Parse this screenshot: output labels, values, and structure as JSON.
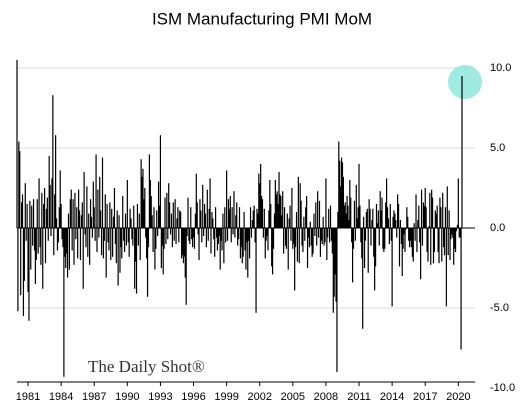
{
  "chart_data": {
    "type": "bar",
    "title": "ISM Manufacturing PMI MoM",
    "watermark": "The Daily Shot®",
    "color": "#000000",
    "grid": true,
    "ylim": [
      -10,
      10.7
    ],
    "yticks": [
      {
        "value": 10,
        "label": "10.0"
      },
      {
        "value": 5,
        "label": "5.0"
      },
      {
        "value": 0,
        "label": "0.0"
      },
      {
        "value": -5,
        "label": "-5.0"
      },
      {
        "value": -10,
        "label": "-10.0"
      }
    ],
    "categories": [
      null,
      null,
      null,
      null,
      null,
      null,
      null,
      null,
      null,
      null,
      null,
      null,
      "1981",
      null,
      null,
      null,
      null,
      null,
      null,
      null,
      null,
      null,
      null,
      null,
      null,
      null,
      null,
      null,
      null,
      null,
      null,
      null,
      null,
      null,
      null,
      null,
      null,
      null,
      null,
      null,
      null,
      null,
      null,
      null,
      null,
      null,
      null,
      null,
      "1984",
      null,
      null,
      null,
      null,
      null,
      null,
      null,
      null,
      null,
      null,
      null,
      null,
      null,
      null,
      null,
      null,
      null,
      null,
      null,
      null,
      null,
      null,
      null,
      null,
      null,
      null,
      null,
      null,
      null,
      null,
      null,
      null,
      null,
      null,
      null,
      "1987",
      null,
      null,
      null,
      null,
      null,
      null,
      null,
      null,
      null,
      null,
      null,
      null,
      null,
      null,
      null,
      null,
      null,
      null,
      null,
      null,
      null,
      null,
      null,
      null,
      null,
      null,
      null,
      null,
      null,
      null,
      null,
      null,
      null,
      null,
      null,
      "1990",
      null,
      null,
      null,
      null,
      null,
      null,
      null,
      null,
      null,
      null,
      null,
      null,
      null,
      null,
      null,
      null,
      null,
      null,
      null,
      null,
      null,
      null,
      null,
      null,
      null,
      null,
      null,
      null,
      null,
      null,
      null,
      null,
      null,
      null,
      null,
      "1993",
      null,
      null,
      null,
      null,
      null,
      null,
      null,
      null,
      null,
      null,
      null,
      null,
      null,
      null,
      null,
      null,
      null,
      null,
      null,
      null,
      null,
      null,
      null,
      null,
      null,
      null,
      null,
      null,
      null,
      null,
      null,
      null,
      null,
      null,
      null,
      "1996",
      null,
      null,
      null,
      null,
      null,
      null,
      null,
      null,
      null,
      null,
      null,
      null,
      null,
      null,
      null,
      null,
      null,
      null,
      null,
      null,
      null,
      null,
      null,
      null,
      null,
      null,
      null,
      null,
      null,
      null,
      null,
      null,
      null,
      null,
      null,
      "1999",
      null,
      null,
      null,
      null,
      null,
      null,
      null,
      null,
      null,
      null,
      null,
      null,
      null,
      null,
      null,
      null,
      null,
      null,
      null,
      null,
      null,
      null,
      null,
      null,
      null,
      null,
      null,
      null,
      null,
      null,
      null,
      null,
      null,
      null,
      null,
      "2002",
      null,
      null,
      null,
      null,
      null,
      null,
      null,
      null,
      null,
      null,
      null,
      null,
      null,
      null,
      null,
      null,
      null,
      null,
      null,
      null,
      null,
      null,
      null,
      null,
      null,
      null,
      null,
      null,
      null,
      null,
      null,
      null,
      null,
      null,
      null,
      "2005",
      null,
      null,
      null,
      null,
      null,
      null,
      null,
      null,
      null,
      null,
      null,
      null,
      null,
      null,
      null,
      null,
      null,
      null,
      null,
      null,
      null,
      null,
      null,
      null,
      null,
      null,
      null,
      null,
      null,
      null,
      null,
      null,
      null,
      null,
      null,
      "2008",
      null,
      null,
      null,
      null,
      null,
      null,
      null,
      null,
      null,
      null,
      null,
      null,
      null,
      null,
      null,
      null,
      null,
      null,
      null,
      null,
      null,
      null,
      null,
      null,
      null,
      null,
      null,
      null,
      null,
      null,
      null,
      null,
      null,
      null,
      null,
      "2011",
      null,
      null,
      null,
      null,
      null,
      null,
      null,
      null,
      null,
      null,
      null,
      null,
      null,
      null,
      null,
      null,
      null,
      null,
      null,
      null,
      null,
      null,
      null,
      null,
      null,
      null,
      null,
      null,
      null,
      null,
      null,
      null,
      null,
      null,
      null,
      "2014",
      null,
      null,
      null,
      null,
      null,
      null,
      null,
      null,
      null,
      null,
      null,
      null,
      null,
      null,
      null,
      null,
      null,
      null,
      null,
      null,
      null,
      null,
      null,
      null,
      null,
      null,
      null,
      null,
      null,
      null,
      null,
      null,
      null,
      null,
      null,
      "2017",
      null,
      null,
      null,
      null,
      null,
      null,
      null,
      null,
      null,
      null,
      null,
      null,
      null,
      null,
      null,
      null,
      null,
      null,
      null,
      null,
      null,
      null,
      null,
      null,
      null,
      null,
      null,
      null,
      null,
      null,
      null,
      null,
      null,
      null,
      null,
      "2020",
      null,
      null,
      null,
      null
    ],
    "values": [
      10.5,
      -5.2,
      5.4,
      4.8,
      -4.2,
      1.6,
      2.1,
      -5.5,
      -3.3,
      2.8,
      -0.8,
      1.5,
      -4.0,
      -5.8,
      1.7,
      -2.6,
      1.4,
      -1.1,
      1.8,
      -1.4,
      -3.5,
      -2.0,
      1.8,
      -1.6,
      3.1,
      -1.2,
      -2.3,
      2.2,
      -3.8,
      1.5,
      2.5,
      -2.2,
      1.2,
      1.9,
      -0.8,
      4.5,
      2.7,
      -0.5,
      3.1,
      8.3,
      -1.7,
      2.1,
      5.8,
      0.6,
      -1.4,
      -0.9,
      1.3,
      3.6,
      1.5,
      -0.7,
      -1.2,
      -9.3,
      -1.8,
      -2.5,
      -1.6,
      -3.1,
      0.9,
      -2.6,
      1.8,
      2.4,
      -1.4,
      1.8,
      -2.3,
      2.2,
      -0.7,
      1.3,
      -1.9,
      2.4,
      1.1,
      -2.0,
      0.8,
      1.6,
      -3.8,
      3.5,
      -0.4,
      -1.2,
      2.6,
      -1.8,
      0.9,
      -2.3,
      1.8,
      0.7,
      -0.6,
      2.9,
      1.3,
      -0.8,
      4.6,
      -1.5,
      2.4,
      -0.6,
      3.2,
      1.1,
      -1.7,
      4.4,
      -1.9,
      -0.8,
      2.1,
      -3.1,
      1.5,
      -0.9,
      -1.4,
      1.6,
      -2.0,
      1.2,
      -1.8,
      0.7,
      2.5,
      -1.0,
      -2.2,
      1.1,
      -3.6,
      0.8,
      -2.8,
      -1.2,
      -1.9,
      2.0,
      -0.8,
      -1.5,
      0.9,
      -1.1,
      3.0,
      -0.9,
      -1.8,
      1.2,
      0.6,
      -0.7,
      -1.1,
      1.4,
      -3.8,
      -2.1,
      -4.1,
      1.5,
      -1.1,
      0.9,
      -2.0,
      4.3,
      3.2,
      3.7,
      1.8,
      2.5,
      -0.6,
      -1.9,
      -4.3,
      -1.2,
      4.6,
      3.0,
      2.0,
      0.8,
      -1.5,
      1.3,
      -2.6,
      -1.3,
      1.1,
      -0.5,
      2.9,
      1.4,
      5.8,
      -2.5,
      -1.1,
      -2.9,
      -1.3,
      1.9,
      -1.0,
      2.2,
      -0.7,
      2.8,
      1.6,
      -0.4,
      0.9,
      -1.2,
      1.6,
      -0.8,
      1.8,
      -1.0,
      0.6,
      1.3,
      -0.9,
      1.1,
      1.0,
      -1.9,
      -1.7,
      -2.2,
      -1.8,
      -3.1,
      -4.8,
      -0.5,
      1.9,
      -0.8,
      -1.0,
      1.3,
      -0.7,
      -1.2,
      -0.6,
      -1.3,
      0.9,
      3.4,
      1.6,
      -0.4,
      -2.0,
      1.8,
      1.1,
      -0.9,
      2.7,
      -0.5,
      1.5,
      0.9,
      -1.2,
      2.4,
      -0.8,
      1.2,
      3.1,
      -1.6,
      1.0,
      0.6,
      -0.7,
      -1.8,
      1.3,
      -0.6,
      -1.4,
      -1.0,
      -0.5,
      -2.6,
      -0.8,
      -1.4,
      0.9,
      -2.2,
      1.3,
      -0.9,
      3.6,
      -0.8,
      1.8,
      1.2,
      2.0,
      -0.9,
      1.3,
      -0.4,
      2.3,
      -0.6,
      0.8,
      1.6,
      -1.1,
      -0.7,
      1.3,
      -1.9,
      -1.2,
      -2.2,
      -1.8,
      1.0,
      -1.4,
      -2.6,
      -0.9,
      -3.1,
      -0.8,
      -1.9,
      1.3,
      -0.6,
      0.5,
      1.1,
      1.4,
      -0.9,
      -5.3,
      1.2,
      0.9,
      3.4,
      2.8,
      4.0,
      2.0,
      1.8,
      -0.6,
      1.2,
      -1.9,
      -0.8,
      -0.5,
      -1.4,
      1.1,
      3.0,
      1.5,
      -2.4,
      -2.9,
      -1.3,
      0.9,
      3.0,
      2.1,
      2.3,
      1.5,
      3.5,
      2.1,
      2.0,
      0.8,
      2.3,
      -1.6,
      1.3,
      -1.1,
      -1.3,
      0.9,
      -2.6,
      0.6,
      1.4,
      -0.8,
      2.5,
      -1.3,
      -1.0,
      -3.9,
      -1.2,
      1.0,
      -2.1,
      3.2,
      -2.2,
      2.8,
      1.7,
      -1.1,
      -1.5,
      0.7,
      -0.8,
      1.3,
      2.0,
      -2.5,
      -0.6,
      -1.2,
      0.4,
      -1.1,
      -1.8,
      -1.6,
      0.9,
      -0.5,
      1.6,
      -1.1,
      2.3,
      -0.6,
      1.7,
      -1.8,
      -0.8,
      -1.0,
      0.7,
      -1.1,
      -0.9,
      3.1,
      -2.0,
      -0.6,
      1.2,
      -0.9,
      1.4,
      -0.8,
      -1.6,
      -5.3,
      -4.3,
      -2.9,
      -4.6,
      -9.0,
      1.0,
      5.4,
      4.2,
      2.6,
      4.4,
      4.1,
      3.2,
      1.4,
      1.6,
      0.9,
      2.0,
      1.4,
      0.5,
      3.0,
      1.9,
      -0.9,
      -3.4,
      -1.3,
      1.7,
      -0.8,
      2.7,
      0.6,
      1.3,
      4.0,
      1.4,
      -0.9,
      -1.9,
      -6.3,
      0.7,
      -2.5,
      -0.8,
      1.0,
      1.2,
      -2.8,
      1.8,
      1.2,
      -1.1,
      0.5,
      1.2,
      -1.8,
      -3.9,
      -2.4,
      1.5,
      0.3,
      1.1,
      -1.1,
      2.3,
      1.1,
      1.9,
      -1.3,
      -1.5,
      -1.3,
      1.6,
      3.1,
      1.3,
      0.6,
      -1.0,
      1.5,
      -0.8,
      -4.9,
      0.7,
      1.1,
      0.9,
      0.5,
      -0.6,
      2.1,
      1.5,
      -2.4,
      0.5,
      -1.0,
      -3.0,
      -1.3,
      -0.4,
      -1.5,
      -0.1,
      1.3,
      0.7,
      -0.8,
      -1.2,
      -0.8,
      -1.2,
      -1.8,
      -2.1,
      0.3,
      -0.8,
      2.1,
      -1.5,
      0.5,
      1.4,
      -0.9,
      -3.2,
      2.4,
      -1.1,
      1.6,
      1.4,
      2.5,
      1.3,
      -1.5,
      -2.1,
      0.1,
      2.2,
      -2.3,
      2.4,
      1.9,
      -2.2,
      -1.5,
      1.1,
      0.9,
      1.4,
      -1.5,
      -2.2,
      1.9,
      1.3,
      -2.1,
      2.2,
      -1.2,
      -1.7,
      1.3,
      -4.9,
      2.6,
      -1.7,
      1.1,
      -2.0,
      -0.7,
      -0.4,
      -0.6,
      -2.3,
      -1.3,
      -1.5,
      -0.2,
      0.2,
      3.1,
      -0.6,
      -0.6,
      -7.6,
      9.5
    ]
  }
}
